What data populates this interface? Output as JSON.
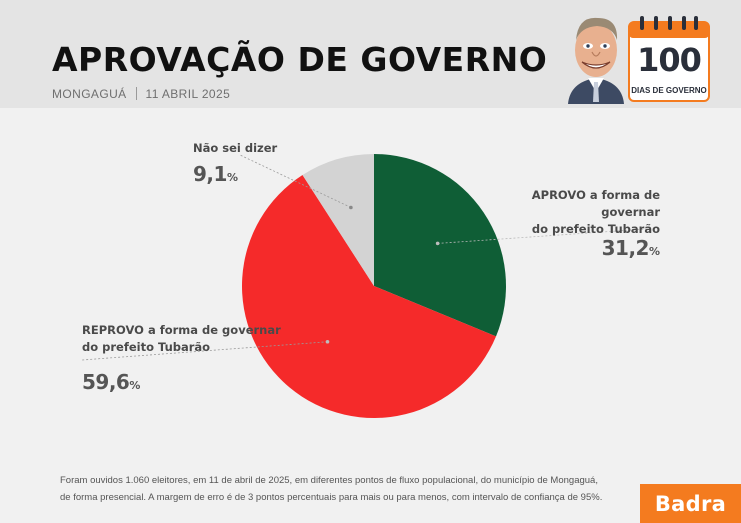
{
  "header": {
    "title": "APROVAÇÃO DE GOVERNO",
    "city": "MONGAGUÁ",
    "date": "11 ABRIL 2025"
  },
  "badge": {
    "number": "100",
    "text": "DIAS DE GOVERNO",
    "color": "#f47b1f"
  },
  "chart_data": {
    "type": "pie",
    "title": "APROVAÇÃO DE GOVERNO",
    "slices": [
      {
        "label": "APROVO a forma de governar do prefeito Tubarão",
        "label_lines": [
          "APROVO a forma de governar",
          "do prefeito Tubarão"
        ],
        "value": 31.2,
        "display": "31,2",
        "color": "#0f5e36"
      },
      {
        "label": "REPROVO a forma de governar do prefeito Tubarão",
        "label_lines": [
          "REPROVO a forma de governar",
          "do prefeito Tubarão"
        ],
        "value": 59.6,
        "display": "59,6",
        "color": "#f52a2a"
      },
      {
        "label": "Não sei dizer",
        "label_lines": [
          "Não sei dizer"
        ],
        "value": 9.1,
        "display": "9,1",
        "color": "#d3d3d3"
      }
    ],
    "unit": "%",
    "start": "12 o'clock",
    "direction": "clockwise"
  },
  "footnote": {
    "line1": "Foram ouvidos 1.060 eleitores, em 11 de abril de 2025, em diferentes pontos de fluxo populacional, do município de Mongaguá,",
    "line2": "de forma presencial. A margem de erro é de 3 pontos percentuais para mais ou para menos, com intervalo de confiança de 95%."
  },
  "brand": {
    "name": "Badra",
    "color": "#f47b1f"
  }
}
